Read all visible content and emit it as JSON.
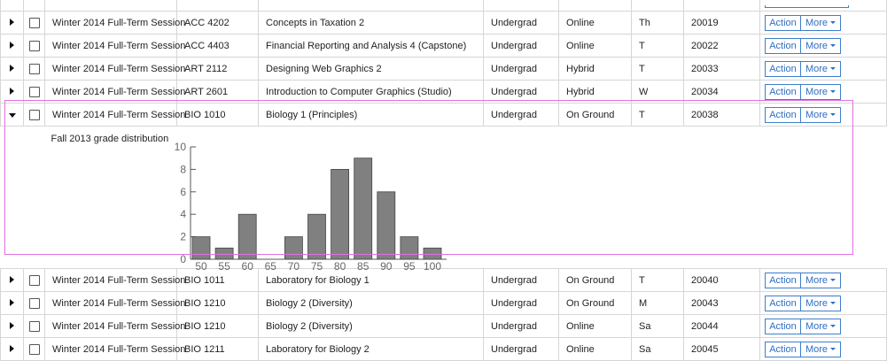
{
  "rows_before": [
    {
      "session": "Winter 2014 Full-Term Session",
      "course": "ACC 4202",
      "title": "Concepts in Taxation 2",
      "level": "Undergrad",
      "mode": "Online",
      "day": "Th",
      "crn": "20019"
    },
    {
      "session": "Winter 2014 Full-Term Session",
      "course": "ACC 4403",
      "title": "Financial Reporting and Analysis 4 (Capstone)",
      "level": "Undergrad",
      "mode": "Online",
      "day": "T",
      "crn": "20022"
    },
    {
      "session": "Winter 2014 Full-Term Session",
      "course": "ART 2112",
      "title": "Designing Web Graphics 2",
      "level": "Undergrad",
      "mode": "Hybrid",
      "day": "T",
      "crn": "20033"
    },
    {
      "session": "Winter 2014 Full-Term Session",
      "course": "ART 2601",
      "title": "Introduction to Computer Graphics (Studio)",
      "level": "Undergrad",
      "mode": "Hybrid",
      "day": "W",
      "crn": "20034"
    }
  ],
  "expanded_row": {
    "session": "Winter 2014 Full-Term Session",
    "course": "BIO 1010",
    "title": "Biology 1 (Principles)",
    "level": "Undergrad",
    "mode": "On Ground",
    "day": "T",
    "crn": "20038"
  },
  "rows_after": [
    {
      "session": "Winter 2014 Full-Term Session",
      "course": "BIO 1011",
      "title": "Laboratory for Biology 1",
      "level": "Undergrad",
      "mode": "On Ground",
      "day": "T",
      "crn": "20040"
    },
    {
      "session": "Winter 2014 Full-Term Session",
      "course": "BIO 1210",
      "title": "Biology 2 (Diversity)",
      "level": "Undergrad",
      "mode": "On Ground",
      "day": "M",
      "crn": "20043"
    },
    {
      "session": "Winter 2014 Full-Term Session",
      "course": "BIO 1210",
      "title": "Biology 2 (Diversity)",
      "level": "Undergrad",
      "mode": "Online",
      "day": "Sa",
      "crn": "20044"
    },
    {
      "session": "Winter 2014 Full-Term Session",
      "course": "BIO 1211",
      "title": "Laboratory for Biology 2",
      "level": "Undergrad",
      "mode": "Online",
      "day": "Sa",
      "crn": "20045"
    }
  ],
  "buttons": {
    "action": "Action",
    "more": "More"
  },
  "detail": {
    "title": "Fall 2013 grade distribution"
  },
  "chart_data": {
    "type": "bar",
    "title": "",
    "categories": [
      "50",
      "55",
      "60",
      "65",
      "70",
      "75",
      "80",
      "85",
      "90",
      "95",
      "100"
    ],
    "values": [
      2,
      1,
      4,
      0,
      2,
      4,
      8,
      9,
      6,
      2,
      1
    ],
    "ylim": [
      0,
      10
    ],
    "yticks": [
      0,
      2,
      4,
      6,
      8,
      10
    ],
    "xlabel": "",
    "ylabel": "",
    "bar_color": "#808080",
    "grid": false
  },
  "colors": {
    "highlight": "#e070e0",
    "button": "#2f6ec2"
  }
}
